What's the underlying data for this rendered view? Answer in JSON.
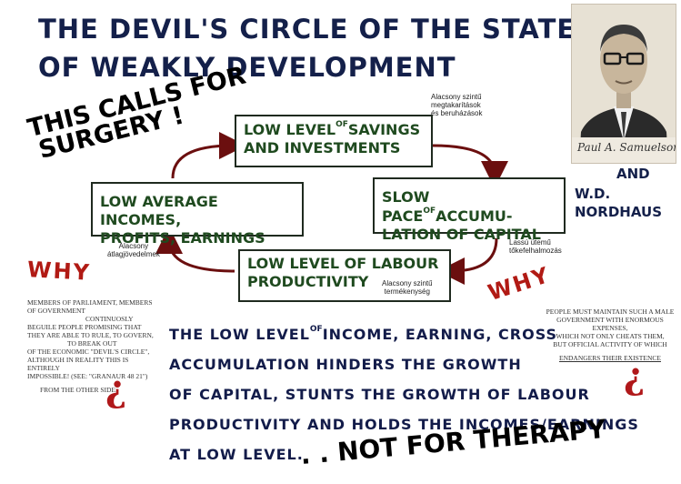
{
  "title": {
    "line1": "THE DEVIL'S CIRCLE OF THE STATE",
    "line2": "OF WEAKLY DEVELOPMENT"
  },
  "slogan": {
    "line1": "THIS CALLS FOR",
    "line2": "SURGERY !",
    "ending": ". . NOT FOR THERAPY"
  },
  "authors": {
    "and": "AND",
    "line1": "W.D.",
    "line2": "NORDHAUS",
    "signature": "Paul A. Samuelson"
  },
  "cycle": {
    "top": {
      "pre": "LOW LEVEL",
      "sup": "OF",
      "post": "SAVINGS",
      "line2": "AND INVESTMENTS",
      "note": [
        "Alacsony szintű",
        "megtakarítások",
        "és beruházások"
      ]
    },
    "right": {
      "pre": "SLOW PACE",
      "sup": "OF",
      "post": "ACCUMU-",
      "line2": "LATION OF CAPITAL",
      "note": [
        "Lassú ütemű",
        "tőkefelhalmozás"
      ]
    },
    "bottom": {
      "line1": "LOW LEVEL OF LABOUR",
      "line2": "PRODUCTIVITY",
      "note": [
        "Alacsony szintű",
        "termékenység"
      ]
    },
    "left": {
      "line1": "LOW AVERAGE INCOMES,",
      "line2": "PROFITS, EARNINGS",
      "note": [
        "Alacsony",
        "átlagjövedelmek"
      ]
    }
  },
  "why_label": "WHY",
  "question_mark": "¿",
  "left_note": {
    "lines": [
      "MEMBERS OF PARLIAMENT, MEMBERS",
      "OF GOVERNMENT",
      "CONTINUOSLY",
      "BEGUILE PEOPLE PROMISING THAT",
      "THEY ARE ABLE TO RULE, TO GOVERN,",
      "TO BREAK OUT",
      "OF THE ECONOMIC \"DEVIL'S CIRCLE\",",
      "ALTHOUGH IN REALITY THIS IS ENTIRELY",
      "IMPOSSIBLE! (SEE: \"GRANAUR 48 21\")",
      "FROM THE OTHER SIDE:"
    ]
  },
  "right_note": {
    "lines": [
      "PEOPLE MUST MAINTAIN SUCH A MALE",
      "GOVERNMENT WITH ENORMOUS EXPENSES,",
      "WHICH NOT ONLY CHEATS THEM,",
      "BUT OFFICIAL ACTIVITY OF WHICH",
      "ENDANGERS THEIR EXISTENCE"
    ]
  },
  "paragraph": {
    "l1_pre": "THE LOW LEVEL",
    "l1_sup": "OF",
    "l1_post": "INCOME, EARNING, CROSS",
    "l2": "ACCUMULATION  HINDERS THE GROWTH",
    "l3": "OF CAPITAL, STUNTS THE GROWTH  OF LABOUR",
    "l4": "PRODUCTIVITY  AND HOLDS THE INCOMES/EARNINGS",
    "l5": "AT LOW LEVEL."
  }
}
